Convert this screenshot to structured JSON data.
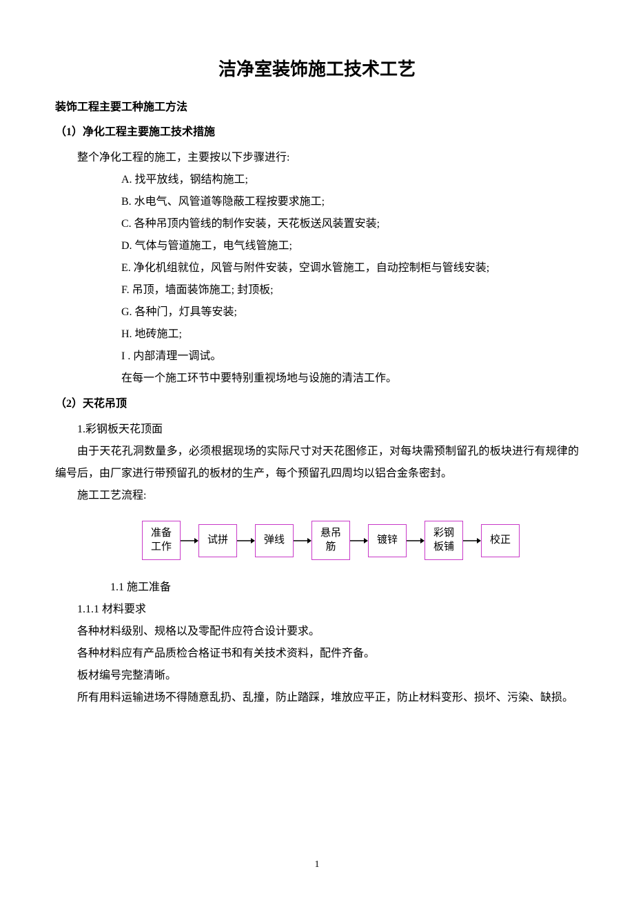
{
  "title": "洁净室装饰施工技术工艺",
  "heading1": "装饰工程主要工种施工方法",
  "section1": {
    "heading": "（1）净化工程主要施工技术措施",
    "intro": "整个净化工程的施工，主要按以下步骤进行:",
    "steps": [
      "A. 找平放线，钢结构施工;",
      "B. 水电气、风管道等隐蔽工程按要求施工;",
      "C. 各种吊顶内管线的制作安装，天花板送风装置安装;",
      "D. 气体与管道施工，电气线管施工;",
      "E. 净化机组就位，风管与附件安装，空调水管施工，自动控制柜与管线安装;",
      "F. 吊顶，墙面装饰施工; 封顶板;",
      "G. 各种门，灯具等安装;",
      "H. 地砖施工;",
      "I . 内部清理一调试。"
    ],
    "note": "在每一个施工环节中要特别重视场地与设施的清洁工作。"
  },
  "section2": {
    "heading": "（2）天花吊顶",
    "sub1_title": "1.彩钢板天花顶面",
    "sub1_body": "由于天花孔洞数量多，必须根据现场的实际尺寸对天花图修正，对每块需预制留孔的板块进行有规律的编号后，由厂家进行带预留孔的板材的生产，每个预留孔四周均以铝合金条密封。",
    "flow_label": "施工工艺流程:",
    "flow_steps": [
      "准备\n工作",
      "试拼",
      "弹线",
      "悬吊\n筋",
      "镀锌",
      "彩钢\n板铺",
      "校正"
    ],
    "sub11": "1.1 施工准备",
    "sub111": "1.1.1 材料要求",
    "req_lines": [
      "各种材料级别、规格以及零配件应符合设计要求。",
      "各种材料应有产品质检合格证书和有关技术资料，配件齐备。",
      "板材编号完整清晰。",
      "所有用料运输进场不得随意乱扔、乱撞，防止踏踩，堆放应平正，防止材料变形、损坏、污染、缺损。"
    ]
  },
  "colors": {
    "flow_border": "#c838c8",
    "text": "#000000",
    "background": "#ffffff",
    "arrow": "#000000"
  },
  "page_number": "1"
}
